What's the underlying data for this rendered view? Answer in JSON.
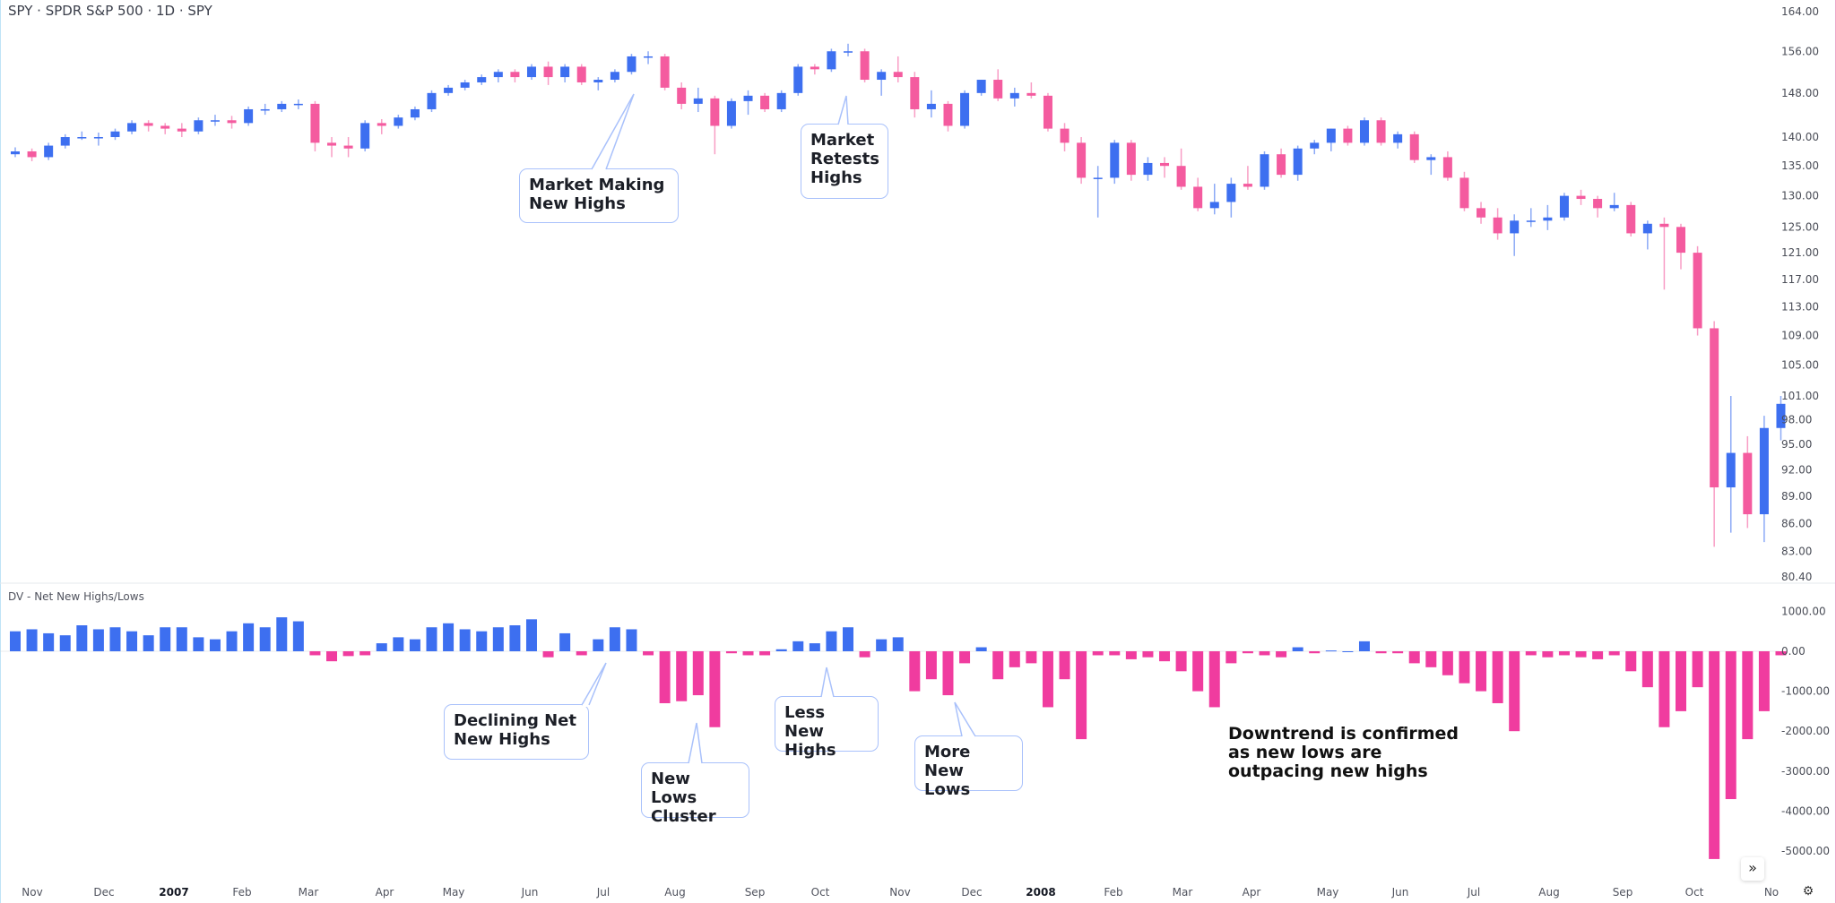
{
  "header": {
    "title": "SPY · SPDR S&P 500 · 1D · SPY"
  },
  "indicator": {
    "title": "DV - Net New Highs/Lows"
  },
  "colors": {
    "up": "#3d6ff0",
    "down": "#f45b9f",
    "hist_up": "#3d6ff0",
    "hist_down": "#f03c9f",
    "callout_border": "#a9c1fb"
  },
  "annotations": {
    "market_making_new_highs": "Market Making\nNew Highs",
    "market_retests_highs": "Market\nRetests\nHighs",
    "declining_net_new_highs": "Declining Net\nNew Highs",
    "new_lows_cluster": "New Lows\nCluster",
    "less_new_highs": "Less New\nHighs",
    "more_new_lows": "More\nNew Lows",
    "downtrend_note": "Downtrend is confirmed\nas new lows are\noutpacing new highs"
  },
  "controls": {
    "scroll_icon": "double-chevron-right-icon",
    "settings_icon": "gear-icon",
    "scroll_label": "»",
    "settings_label": "⚙"
  },
  "chart_data": [
    {
      "type": "candlestick",
      "title": "SPY · SPDR S&P 500 · 1D · SPY",
      "scale": "log",
      "ylim": [
        80.4,
        164
      ],
      "y_ticks": [
        "164.00",
        "156.00",
        "148.00",
        "140.00",
        "135.00",
        "130.00",
        "125.00",
        "121.00",
        "117.00",
        "113.00",
        "109.00",
        "105.00",
        "101.00",
        "98.00",
        "95.00",
        "92.00",
        "89.00",
        "86.00",
        "83.00",
        "80.40"
      ],
      "x_ticks": [
        "Nov",
        "Dec",
        "2007",
        "Feb",
        "Mar",
        "Apr",
        "May",
        "Jun",
        "Jul",
        "Aug",
        "Sep",
        "Oct",
        "Nov",
        "Dec",
        "2008",
        "Feb",
        "Mar",
        "Apr",
        "May",
        "Jun",
        "Jul",
        "Aug",
        "Sep",
        "Oct",
        "No"
      ],
      "open": [
        137,
        137.5,
        136.5,
        138.5,
        140,
        140,
        140,
        141,
        142.5,
        142,
        141.5,
        141,
        143,
        143,
        142.5,
        145,
        145,
        146,
        146,
        139,
        138.5,
        138,
        142.5,
        142,
        143.5,
        145,
        148,
        149,
        150,
        151,
        152,
        151,
        153,
        151,
        153,
        150,
        150.5,
        152,
        155,
        155,
        149,
        146,
        147,
        142,
        146.5,
        147.5,
        145,
        148,
        153,
        152.5,
        156,
        156,
        150.5,
        152,
        151,
        145,
        146,
        142,
        148,
        150.5,
        147,
        148,
        147.5,
        141.5,
        139,
        133,
        133,
        139,
        133.5,
        135.5,
        135,
        131.5,
        128,
        129,
        132,
        131.5,
        137,
        133.5,
        138,
        139,
        141.5,
        139,
        143,
        139,
        140.5,
        136,
        136.5,
        133,
        128,
        126.5,
        124,
        126,
        126,
        126.5,
        130,
        129.5,
        128,
        128.5,
        124,
        125.5,
        125,
        121,
        110,
        90,
        94,
        87,
        97
      ],
      "high": [
        138.2,
        138,
        139,
        140.5,
        141,
        140.8,
        141.5,
        143,
        143,
        142.5,
        142.5,
        143.5,
        144,
        143.8,
        145.5,
        146,
        146.5,
        146.8,
        146.5,
        140,
        140,
        143,
        143.2,
        144,
        145.5,
        148.5,
        149.5,
        150.5,
        151.5,
        152.5,
        152.5,
        153.5,
        154,
        153.5,
        153.5,
        151,
        152.5,
        155.5,
        156,
        155.5,
        150,
        149,
        147.5,
        147,
        148.5,
        148,
        148.5,
        153.5,
        153.5,
        156.5,
        157.5,
        156.5,
        152.5,
        155,
        152,
        148.5,
        146.5,
        148.5,
        150.5,
        152.5,
        149,
        150,
        148,
        142.5,
        140,
        135,
        139.5,
        139.5,
        136.5,
        136.5,
        138,
        133,
        132,
        133,
        135,
        137.5,
        138,
        138.5,
        139.5,
        141.5,
        142,
        143.5,
        143.5,
        141,
        141,
        137,
        137.5,
        134,
        129,
        128,
        127,
        128,
        128.5,
        130.5,
        131,
        130,
        130.5,
        129,
        126,
        126.5,
        125.5,
        122,
        111,
        101,
        96,
        98.5,
        101
      ],
      "low": [
        136.5,
        135.8,
        136,
        138,
        139.5,
        138.5,
        139.5,
        140.5,
        141,
        140.5,
        140,
        140.5,
        142,
        141.5,
        142,
        144,
        144.5,
        145,
        137.5,
        136.5,
        136.5,
        137.5,
        140.5,
        141.5,
        143,
        144.5,
        147.5,
        148.5,
        149.5,
        150,
        150,
        150.5,
        149.5,
        150,
        149.5,
        148.5,
        150,
        151.5,
        153.5,
        148.5,
        145,
        144.5,
        137,
        141.5,
        144,
        144.5,
        144.5,
        147.5,
        151.5,
        152,
        155,
        150,
        147.5,
        150,
        143.5,
        143.5,
        141,
        141.5,
        147.5,
        146.5,
        145.5,
        147,
        141,
        137.5,
        132,
        126.5,
        132,
        132.5,
        132.5,
        133,
        131,
        127.5,
        127,
        126.5,
        131,
        131,
        133,
        132.5,
        137,
        137.5,
        138.5,
        138.5,
        138.5,
        138,
        135.5,
        133.5,
        132.5,
        127.5,
        125.5,
        123,
        120.5,
        125,
        124.5,
        126,
        128.5,
        126.5,
        127.5,
        123.5,
        121.5,
        115.5,
        118.5,
        109,
        83.5,
        85,
        85.5,
        84,
        95.5
      ],
      "close": [
        137.5,
        136.5,
        138.5,
        140,
        140,
        140,
        141,
        142.5,
        142,
        141.5,
        141,
        143,
        143,
        142.5,
        145,
        145,
        146,
        146,
        139,
        138.5,
        138,
        142.5,
        142,
        143.5,
        145,
        148,
        149,
        150,
        151,
        152,
        151,
        153,
        151,
        153,
        150,
        150.5,
        152,
        155,
        155,
        149,
        146,
        147,
        142,
        146.5,
        147.5,
        145,
        148,
        153,
        152.5,
        156,
        156,
        150.5,
        152,
        151,
        145,
        146,
        142,
        148,
        150.5,
        147,
        148,
        147.5,
        141.5,
        139,
        133,
        133,
        139,
        133.5,
        135.5,
        135,
        131.5,
        128,
        129,
        132,
        131.5,
        137,
        133.5,
        138,
        139,
        141.5,
        139,
        143,
        139,
        140.5,
        136,
        136.5,
        133,
        128,
        126.5,
        124,
        126,
        126,
        126.5,
        130,
        129.5,
        128,
        128.5,
        124,
        125.5,
        125,
        121,
        110,
        90,
        94,
        87,
        97,
        100
      ]
    },
    {
      "type": "bar",
      "title": "DV - Net New Highs/Lows",
      "ylim": [
        -5300,
        1300
      ],
      "y_ticks": [
        "1000.00",
        "0.00",
        "-1000.00",
        "-2000.00",
        "-3000.00",
        "-4000.00",
        "-5000.00"
      ],
      "values": [
        500,
        550,
        450,
        400,
        650,
        550,
        600,
        500,
        400,
        600,
        600,
        350,
        300,
        500,
        700,
        600,
        850,
        750,
        -100,
        -250,
        -120,
        -100,
        200,
        350,
        300,
        600,
        700,
        550,
        500,
        600,
        650,
        800,
        -150,
        450,
        -100,
        300,
        600,
        550,
        -100,
        -1300,
        -1250,
        -1100,
        -1900,
        -50,
        -100,
        -100,
        50,
        250,
        200,
        500,
        600,
        -150,
        300,
        350,
        -1000,
        -700,
        -1100,
        -300,
        100,
        -700,
        -400,
        -300,
        -1400,
        -700,
        -2200,
        -100,
        -100,
        -200,
        -150,
        -250,
        -500,
        -1000,
        -1400,
        -300,
        -50,
        -100,
        -150,
        100,
        -50,
        20,
        0,
        250,
        -50,
        -50,
        -300,
        -400,
        -600,
        -800,
        -1000,
        -1300,
        -2000,
        -100,
        -150,
        -100,
        -150,
        -200,
        -100,
        -500,
        -900,
        -1900,
        -1500,
        -900,
        -5200,
        -3700,
        -2200,
        -1500,
        -100
      ]
    }
  ]
}
